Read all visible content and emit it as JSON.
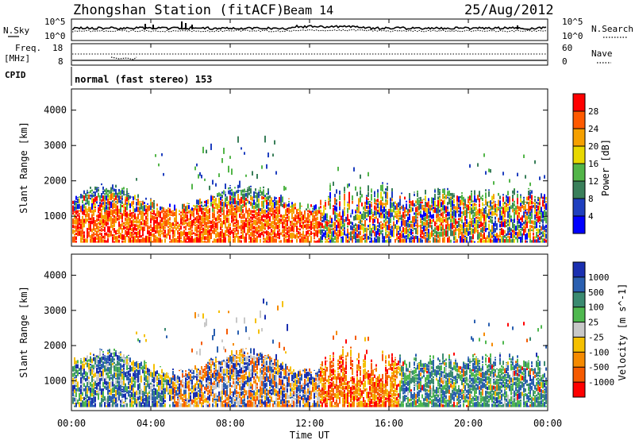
{
  "header": {
    "station": "Zhongshan Station (fitACF)",
    "beam": "Beam 14",
    "date": "25/Aug/2012"
  },
  "top_panel": {
    "left_label": "N.Sky",
    "right_label": "N.Search",
    "left_ticks": [
      "10^5",
      "10^0"
    ],
    "right_ticks": [
      "10^5",
      "10^0"
    ]
  },
  "freq_panel": {
    "left_label_1": "Freq.",
    "left_label_2": "[MHz]",
    "right_label": "Nave",
    "left_ticks": [
      "18",
      "8"
    ],
    "right_ticks": [
      "60",
      "0"
    ]
  },
  "cpid": {
    "label": "CPID",
    "value": "normal (fast stereo) 153"
  },
  "chart_data": [
    {
      "type": "heatmap",
      "name": "power",
      "ylabel": "Slant Range [km]",
      "xlabel": "Time UT",
      "y_ticks": [
        "1000",
        "2000",
        "3000",
        "4000"
      ],
      "x_ticks": [
        "00:00",
        "04:00",
        "08:00",
        "12:00",
        "16:00",
        "20:00",
        "00:00"
      ],
      "ylim": [
        150,
        4600
      ],
      "xlim_hours": [
        0,
        24
      ],
      "colorbar": {
        "label": "Power [dB]",
        "ticks": [
          "4",
          "8",
          "12",
          "16",
          "20",
          "24",
          "28"
        ],
        "range": [
          0,
          30
        ],
        "colors": [
          "#0000ff",
          "#1f3fbf",
          "#3a7f5a",
          "#52b548",
          "#e8d800",
          "#f5a000",
          "#ff5a00",
          "#ff0000"
        ]
      },
      "description_regions": [
        {
          "t0": 0.0,
          "t1": 12.5,
          "r0": 300,
          "r1": 1400,
          "level": "high"
        },
        {
          "t0": 12.5,
          "t1": 24.0,
          "r0": 300,
          "r1": 1800,
          "level": "mixed"
        },
        {
          "t0": 6.5,
          "t1": 10.5,
          "r0": 1500,
          "r1": 3300,
          "level": "low"
        }
      ]
    },
    {
      "type": "heatmap",
      "name": "velocity",
      "ylabel": "Slant Range [km]",
      "xlabel": "Time UT",
      "y_ticks": [
        "1000",
        "2000",
        "3000",
        "4000"
      ],
      "x_ticks": [
        "00:00",
        "04:00",
        "08:00",
        "12:00",
        "16:00",
        "20:00",
        "00:00"
      ],
      "ylim": [
        150,
        4600
      ],
      "xlim_hours": [
        0,
        24
      ],
      "colorbar": {
        "label": "Velocity [m s^-1]",
        "ticks": [
          "1000",
          "500",
          "100",
          "25",
          "-25",
          "-100",
          "-500",
          "-1000"
        ],
        "colors": [
          "#1a2fb0",
          "#2a5fb0",
          "#3a8a70",
          "#4fb84f",
          "#c8c8c8",
          "#f5c000",
          "#f58a00",
          "#f55a00",
          "#ff0000"
        ]
      }
    }
  ]
}
